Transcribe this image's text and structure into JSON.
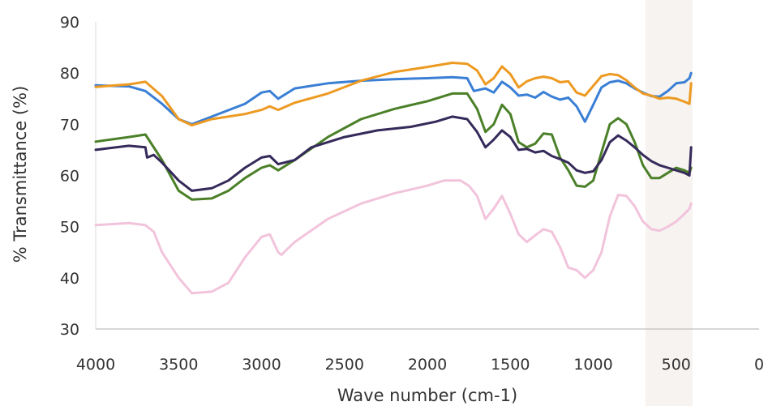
{
  "chart_data": {
    "type": "line",
    "title": "",
    "xlabel": "Wave number (cm-1)",
    "ylabel": "% Transmittance (%)",
    "xlim": [
      4000,
      0
    ],
    "ylim": [
      30,
      90
    ],
    "x_reversed": true,
    "x_ticks": [
      "4000",
      "3500",
      "3000",
      "2500",
      "2000",
      "1500",
      "1000",
      "500",
      "0"
    ],
    "y_ticks": [
      "90",
      "80",
      "70",
      "60",
      "50",
      "40",
      "30"
    ],
    "grid": false,
    "legend": "none",
    "series": [
      {
        "color": "#3a7fd5",
        "points": [
          [
            4000,
            77.6
          ],
          [
            3800,
            77.4
          ],
          [
            3700,
            76.5
          ],
          [
            3600,
            74
          ],
          [
            3500,
            71
          ],
          [
            3420,
            70
          ],
          [
            3300,
            71.5
          ],
          [
            3100,
            74
          ],
          [
            3000,
            76.2
          ],
          [
            2950,
            76.5
          ],
          [
            2900,
            75
          ],
          [
            2800,
            77
          ],
          [
            2600,
            78
          ],
          [
            2400,
            78.5
          ],
          [
            2200,
            78.8
          ],
          [
            2000,
            79
          ],
          [
            1850,
            79.2
          ],
          [
            1760,
            79
          ],
          [
            1720,
            76.5
          ],
          [
            1650,
            77
          ],
          [
            1600,
            76.2
          ],
          [
            1550,
            78.3
          ],
          [
            1500,
            77.2
          ],
          [
            1450,
            75.6
          ],
          [
            1400,
            75.8
          ],
          [
            1350,
            75.2
          ],
          [
            1300,
            76.3
          ],
          [
            1250,
            75.4
          ],
          [
            1200,
            74.8
          ],
          [
            1150,
            75.2
          ],
          [
            1100,
            73.5
          ],
          [
            1050,
            70.5
          ],
          [
            1000,
            73.8
          ],
          [
            950,
            77.2
          ],
          [
            900,
            78.2
          ],
          [
            850,
            78.5
          ],
          [
            800,
            78
          ],
          [
            750,
            77
          ],
          [
            700,
            76.2
          ],
          [
            650,
            75.5
          ],
          [
            600,
            75.4
          ],
          [
            550,
            76.5
          ],
          [
            500,
            78
          ],
          [
            450,
            78.2
          ],
          [
            420,
            79
          ],
          [
            410,
            80
          ]
        ]
      },
      {
        "color": "#ed9a22",
        "points": [
          [
            4000,
            77.3
          ],
          [
            3800,
            77.8
          ],
          [
            3700,
            78.3
          ],
          [
            3600,
            75.5
          ],
          [
            3500,
            71
          ],
          [
            3420,
            69.8
          ],
          [
            3300,
            71
          ],
          [
            3100,
            72
          ],
          [
            3000,
            72.8
          ],
          [
            2950,
            73.5
          ],
          [
            2900,
            72.8
          ],
          [
            2800,
            74.2
          ],
          [
            2600,
            76
          ],
          [
            2400,
            78.5
          ],
          [
            2200,
            80.2
          ],
          [
            2000,
            81.2
          ],
          [
            1850,
            82
          ],
          [
            1760,
            81.8
          ],
          [
            1700,
            80.5
          ],
          [
            1650,
            77.8
          ],
          [
            1600,
            79
          ],
          [
            1550,
            81.3
          ],
          [
            1500,
            79.8
          ],
          [
            1450,
            77.2
          ],
          [
            1400,
            78.4
          ],
          [
            1350,
            79
          ],
          [
            1300,
            79.3
          ],
          [
            1250,
            79
          ],
          [
            1200,
            78.2
          ],
          [
            1150,
            78.4
          ],
          [
            1100,
            76.2
          ],
          [
            1050,
            75.6
          ],
          [
            1000,
            77.5
          ],
          [
            950,
            79.4
          ],
          [
            900,
            79.8
          ],
          [
            850,
            79.6
          ],
          [
            800,
            78.6
          ],
          [
            750,
            77.2
          ],
          [
            700,
            76
          ],
          [
            650,
            75.6
          ],
          [
            600,
            75
          ],
          [
            550,
            75.2
          ],
          [
            500,
            75
          ],
          [
            450,
            74.4
          ],
          [
            420,
            74
          ],
          [
            410,
            78
          ]
        ]
      },
      {
        "color": "#4b8028",
        "points": [
          [
            4000,
            66.6
          ],
          [
            3800,
            67.5
          ],
          [
            3700,
            68
          ],
          [
            3600,
            63
          ],
          [
            3500,
            57
          ],
          [
            3420,
            55.3
          ],
          [
            3300,
            55.5
          ],
          [
            3200,
            57
          ],
          [
            3100,
            59.5
          ],
          [
            3000,
            61.5
          ],
          [
            2950,
            62
          ],
          [
            2900,
            61
          ],
          [
            2800,
            63
          ],
          [
            2600,
            67.5
          ],
          [
            2400,
            71
          ],
          [
            2200,
            73
          ],
          [
            2000,
            74.5
          ],
          [
            1850,
            76
          ],
          [
            1760,
            76
          ],
          [
            1700,
            73
          ],
          [
            1650,
            68.5
          ],
          [
            1600,
            70
          ],
          [
            1550,
            73.8
          ],
          [
            1500,
            72
          ],
          [
            1450,
            66.5
          ],
          [
            1400,
            65.5
          ],
          [
            1350,
            66.2
          ],
          [
            1300,
            68.2
          ],
          [
            1250,
            68
          ],
          [
            1200,
            63.5
          ],
          [
            1150,
            61
          ],
          [
            1100,
            58
          ],
          [
            1050,
            57.8
          ],
          [
            1000,
            59
          ],
          [
            950,
            64.5
          ],
          [
            900,
            70
          ],
          [
            850,
            71.2
          ],
          [
            800,
            70
          ],
          [
            750,
            66.5
          ],
          [
            700,
            62
          ],
          [
            650,
            59.5
          ],
          [
            600,
            59.5
          ],
          [
            550,
            60.5
          ],
          [
            500,
            61.5
          ],
          [
            450,
            61
          ],
          [
            420,
            60.5
          ],
          [
            410,
            61.5
          ]
        ]
      },
      {
        "color": "#352a5a",
        "points": [
          [
            4000,
            65
          ],
          [
            3800,
            65.8
          ],
          [
            3700,
            65.5
          ],
          [
            3690,
            63.5
          ],
          [
            3650,
            64
          ],
          [
            3600,
            62.5
          ],
          [
            3500,
            59
          ],
          [
            3420,
            57
          ],
          [
            3300,
            57.5
          ],
          [
            3200,
            59
          ],
          [
            3100,
            61.5
          ],
          [
            3000,
            63.5
          ],
          [
            2950,
            63.8
          ],
          [
            2900,
            62.2
          ],
          [
            2800,
            63
          ],
          [
            2700,
            65.5
          ],
          [
            2500,
            67.5
          ],
          [
            2300,
            68.8
          ],
          [
            2100,
            69.5
          ],
          [
            1950,
            70.5
          ],
          [
            1850,
            71.5
          ],
          [
            1760,
            71
          ],
          [
            1700,
            68.5
          ],
          [
            1650,
            65.5
          ],
          [
            1600,
            67
          ],
          [
            1550,
            68.8
          ],
          [
            1500,
            67.5
          ],
          [
            1450,
            65
          ],
          [
            1400,
            65.2
          ],
          [
            1350,
            64.5
          ],
          [
            1300,
            64.8
          ],
          [
            1250,
            63.8
          ],
          [
            1200,
            63.2
          ],
          [
            1150,
            62.5
          ],
          [
            1100,
            61
          ],
          [
            1050,
            60.5
          ],
          [
            1000,
            60.8
          ],
          [
            950,
            63
          ],
          [
            900,
            66.5
          ],
          [
            850,
            67.8
          ],
          [
            800,
            66.8
          ],
          [
            750,
            65.5
          ],
          [
            700,
            64
          ],
          [
            650,
            62.8
          ],
          [
            600,
            62
          ],
          [
            550,
            61.5
          ],
          [
            500,
            61
          ],
          [
            450,
            60.5
          ],
          [
            420,
            60
          ],
          [
            410,
            65.5
          ]
        ]
      },
      {
        "color": "#f2c4dc",
        "points": [
          [
            4000,
            50.3
          ],
          [
            3800,
            50.7
          ],
          [
            3700,
            50.3
          ],
          [
            3650,
            49
          ],
          [
            3600,
            45
          ],
          [
            3500,
            40
          ],
          [
            3420,
            37
          ],
          [
            3300,
            37.3
          ],
          [
            3200,
            39
          ],
          [
            3100,
            44
          ],
          [
            3000,
            48
          ],
          [
            2950,
            48.5
          ],
          [
            2900,
            45
          ],
          [
            2880,
            44.5
          ],
          [
            2800,
            47
          ],
          [
            2600,
            51.5
          ],
          [
            2400,
            54.5
          ],
          [
            2200,
            56.5
          ],
          [
            2000,
            58
          ],
          [
            1900,
            59
          ],
          [
            1800,
            59
          ],
          [
            1750,
            58
          ],
          [
            1700,
            56
          ],
          [
            1650,
            51.5
          ],
          [
            1600,
            53.5
          ],
          [
            1550,
            56
          ],
          [
            1500,
            52.5
          ],
          [
            1450,
            48.5
          ],
          [
            1400,
            47
          ],
          [
            1350,
            48.3
          ],
          [
            1300,
            49.5
          ],
          [
            1250,
            49
          ],
          [
            1200,
            46
          ],
          [
            1150,
            42
          ],
          [
            1100,
            41.5
          ],
          [
            1050,
            40
          ],
          [
            1000,
            41.5
          ],
          [
            950,
            45
          ],
          [
            900,
            52
          ],
          [
            850,
            56.2
          ],
          [
            800,
            56
          ],
          [
            750,
            54
          ],
          [
            700,
            51
          ],
          [
            650,
            49.5
          ],
          [
            600,
            49.2
          ],
          [
            550,
            50
          ],
          [
            500,
            51
          ],
          [
            450,
            52.5
          ],
          [
            420,
            53.5
          ],
          [
            410,
            54.5
          ]
        ]
      }
    ]
  }
}
